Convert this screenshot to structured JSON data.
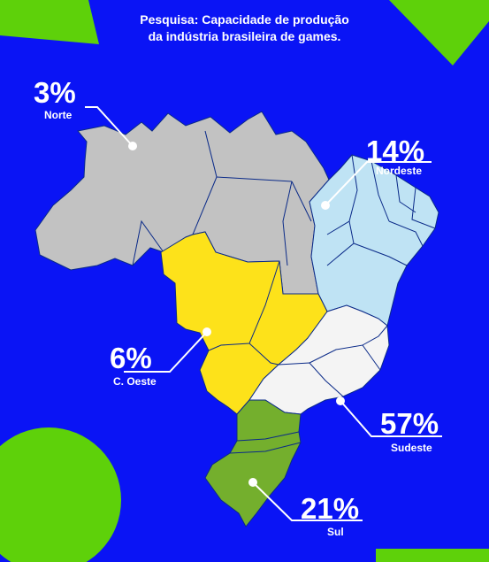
{
  "title_line1": "Pesquisa: Capacidade de produção",
  "title_line2": "da indústria brasileira de games.",
  "colors": {
    "background": "#0a14f5",
    "accent_green": "#5ed10a",
    "norte": "#c2c2c2",
    "nordeste": "#bfe3f4",
    "centro_oeste": "#fde21a",
    "sudeste": "#f4f4f4",
    "sul": "#74af2d"
  },
  "regions": [
    {
      "id": "norte",
      "percent": "3%",
      "name": "Norte"
    },
    {
      "id": "nordeste",
      "percent": "14%",
      "name": "Nordeste"
    },
    {
      "id": "centro_oeste",
      "percent": "6%",
      "name": "C. Oeste"
    },
    {
      "id": "sudeste",
      "percent": "57%",
      "name": "Sudeste"
    },
    {
      "id": "sul",
      "percent": "21%",
      "name": "Sul"
    }
  ]
}
